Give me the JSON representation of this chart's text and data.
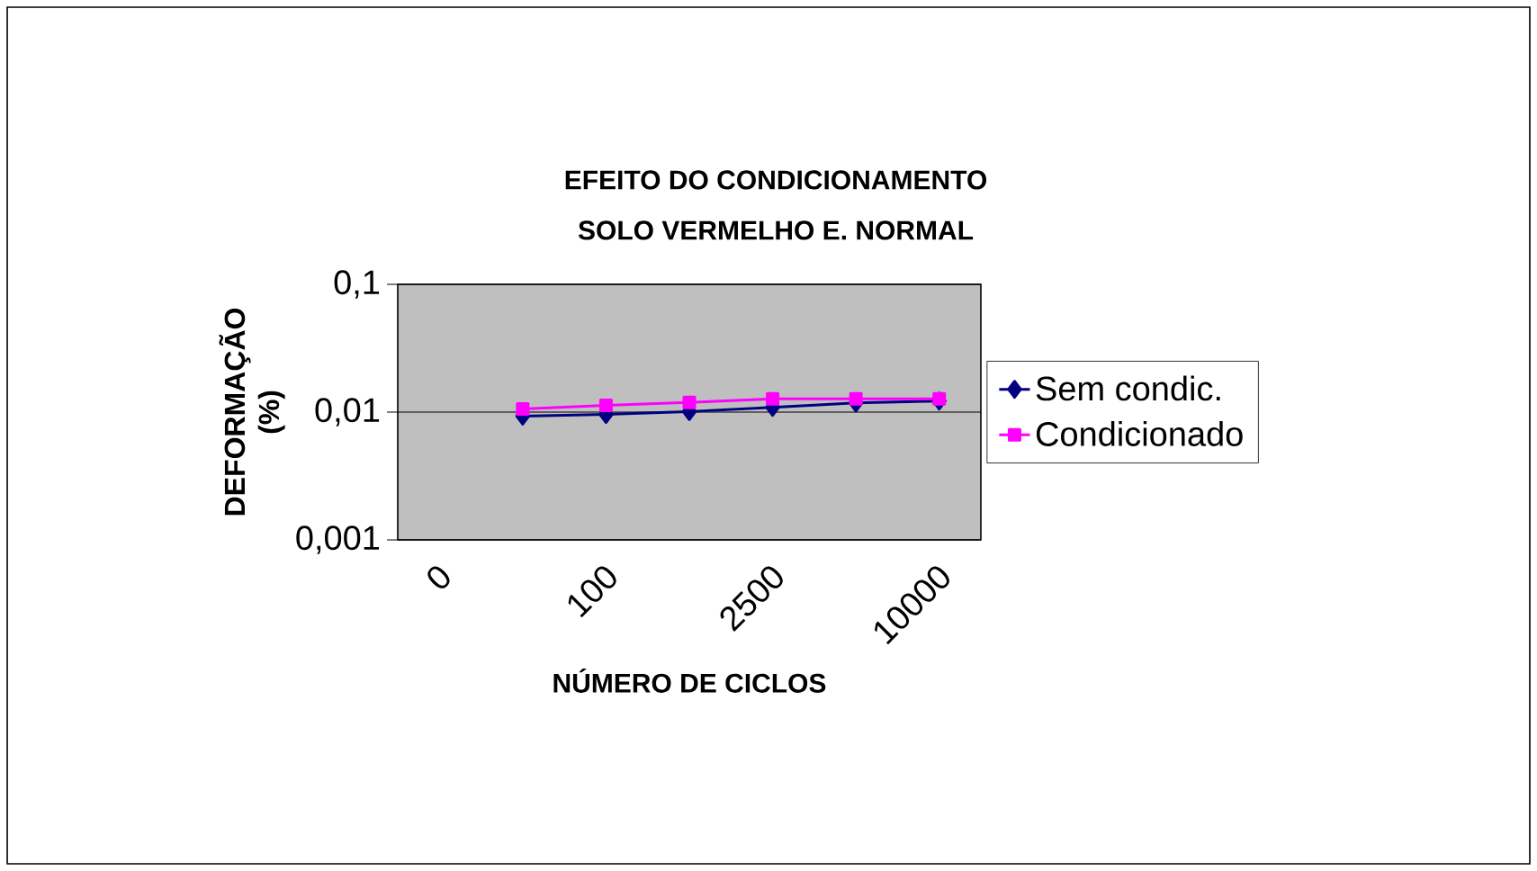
{
  "chart_data": {
    "type": "line",
    "title": "EFEITO DO CONDICIONAMENTO",
    "subtitle": "SOLO VERMELHO E. NORMAL",
    "xlabel": "NÚMERO DE CICLOS",
    "ylabel": "DEFORMAÇÃO (%)",
    "categories": [
      "0",
      null,
      "100",
      null,
      "2500",
      null,
      "10000"
    ],
    "series": [
      {
        "name": "Sem condic.",
        "color": "#000080",
        "marker": "diamond",
        "values": [
          null,
          0.0093,
          0.0096,
          0.0101,
          0.0109,
          0.0118,
          0.0122
        ]
      },
      {
        "name": "Condicionado",
        "color": "#ff00ff",
        "marker": "square",
        "values": [
          null,
          0.0106,
          0.0113,
          0.0119,
          0.0127,
          0.0127,
          0.0127
        ]
      }
    ],
    "log": "y",
    "ylim": [
      0.001,
      0.1
    ],
    "yticks": [
      {
        "value": 0.001,
        "label": "0,001"
      },
      {
        "value": 0.01,
        "label": "0,01"
      },
      {
        "value": 0.1,
        "label": "0,1"
      }
    ],
    "grid": "y",
    "legend": "right",
    "line_style": "solid"
  }
}
